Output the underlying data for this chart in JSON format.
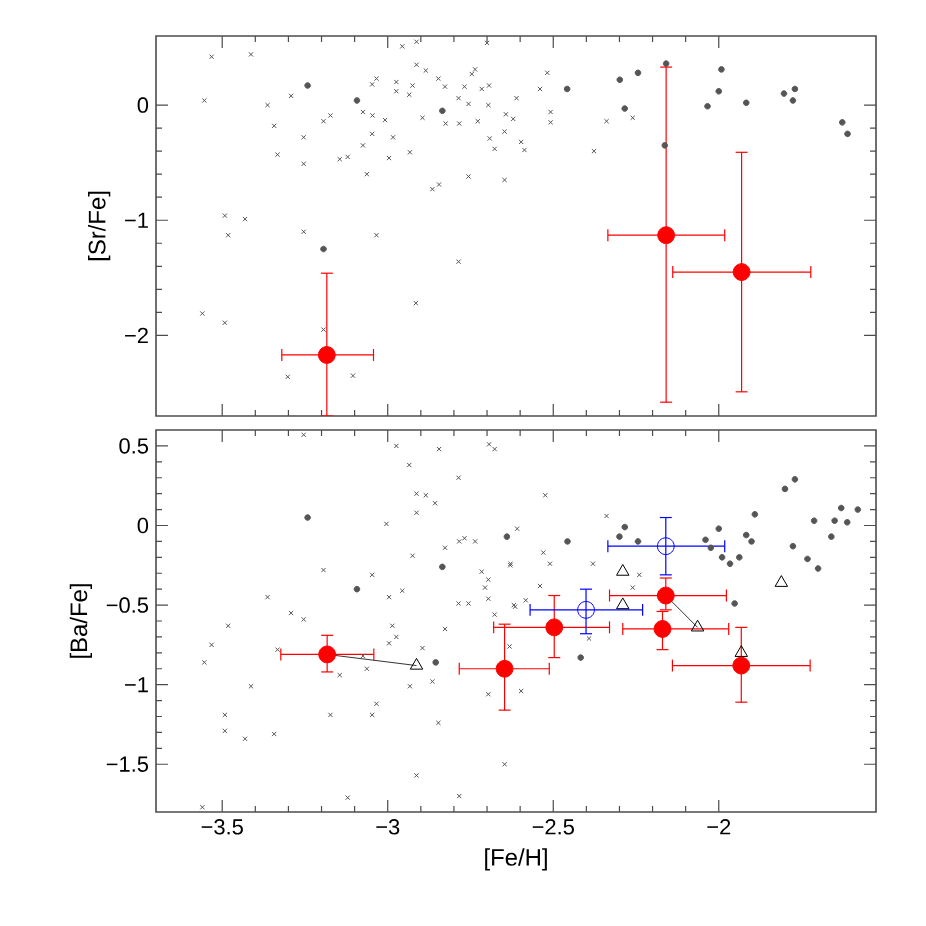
{
  "chart_data": [
    {
      "type": "scatter",
      "ylabel": "[Sr/Fe]",
      "xlim": [
        -3.7,
        -1.525
      ],
      "ylim": [
        -2.7,
        0.6
      ],
      "tick_labels": "y",
      "xticks": [
        {
          "value": -3.5,
          "label": null
        },
        {
          "value": -3,
          "label": null
        },
        {
          "value": -2.5,
          "label": null
        },
        {
          "value": -2,
          "label": null
        }
      ],
      "yticks": [
        {
          "value": -2,
          "label": "−2"
        },
        {
          "value": -1,
          "label": "−1"
        },
        0
      ],
      "series": [
        {
          "type": "scatter",
          "marker": "cross",
          "color": "#555555",
          "x": [
            -3.532,
            -3.413,
            -3.554,
            -3.363,
            -3.343,
            -3.333,
            -3.292,
            -3.254,
            -3.254,
            -3.194,
            -3.173,
            -3.145,
            -3.121,
            -3.075,
            -3.075,
            -3.063,
            -3.047,
            -3.047,
            -3.034,
            -3.046,
            -3.008,
            -2.984,
            -2.996,
            -2.974,
            -2.974,
            -2.956,
            -2.913,
            -2.933,
            -2.925,
            -2.913,
            -2.885,
            -2.895,
            -2.935,
            -2.847,
            -2.827,
            -2.825,
            -2.784,
            -2.786,
            -2.768,
            -2.756,
            -2.746,
            -2.736,
            -2.728,
            -2.716,
            -2.694,
            -2.7,
            -2.696,
            -2.692,
            -2.677,
            -2.647,
            -2.643,
            -2.621,
            -2.611,
            -2.597,
            -2.587,
            -2.54,
            -2.518,
            -2.508,
            -2.508,
            -2.377,
            -2.339,
            -2.26,
            -2.865,
            -2.845,
            -2.756,
            -2.647,
            -3.492,
            -3.431,
            -3.482,
            -3.254,
            -3.034,
            -2.786,
            -2.915,
            -3.56,
            -3.492,
            -3.194,
            -3.302,
            -3.105
          ],
          "values": [
            0.42,
            0.44,
            0.04,
            0.0,
            -0.18,
            -0.43,
            0.08,
            -0.28,
            -0.51,
            -0.14,
            -0.09,
            -0.47,
            -0.45,
            -0.35,
            -0.06,
            -0.6,
            -0.25,
            0.18,
            0.23,
            -0.09,
            -0.13,
            -0.28,
            -0.46,
            0.2,
            0.12,
            0.51,
            0.55,
            -0.41,
            0.17,
            0.35,
            0.3,
            -0.11,
            0.09,
            0.23,
            0.16,
            -0.16,
            -0.16,
            0.06,
            0.16,
            0.01,
            0.27,
            0.31,
            -0.14,
            0.14,
            0.17,
            0.54,
            0.0,
            -0.29,
            -0.38,
            -0.23,
            -0.08,
            -0.12,
            0.06,
            -0.32,
            -0.39,
            0.14,
            0.28,
            -0.06,
            -0.15,
            -0.4,
            -0.14,
            -0.11,
            -0.73,
            -0.69,
            -0.62,
            -0.65,
            -0.96,
            -0.99,
            -1.13,
            -1.1,
            -1.13,
            -1.36,
            -1.72,
            -1.81,
            -1.89,
            -1.95,
            -2.36,
            -2.35
          ]
        },
        {
          "type": "scatter",
          "marker": "circle",
          "color": "#555555",
          "x": [
            -3.242,
            -3.093,
            -3.194,
            -2.835,
            -2.458,
            -2.299,
            -2.244,
            -2.284,
            -2.159,
            -2.163,
            -2.034,
            -2.0,
            -1.992,
            -1.917,
            -1.803,
            -1.776,
            -1.77,
            -1.627,
            -1.611
          ],
          "values": [
            0.17,
            0.04,
            -1.25,
            -0.05,
            0.14,
            0.22,
            0.28,
            -0.03,
            0.36,
            -0.35,
            -0.01,
            0.12,
            0.31,
            0.02,
            0.1,
            0.04,
            0.14,
            -0.15,
            -0.25
          ]
        },
        {
          "type": "scatter",
          "marker": "circle",
          "color": "#ff0000",
          "x": [
            -3.184,
            -2.159,
            -1.931
          ],
          "values": [
            -2.17,
            -1.13,
            -1.45
          ],
          "errors": [
            [
              -2.7,
              -1.46
            ],
            [
              -2.58,
              0.33
            ],
            [
              -2.49,
              -0.41
            ]
          ],
          "xerrors": [
            [
              -3.32,
              -3.043
            ],
            [
              -2.335,
              -1.982
            ],
            [
              -2.139,
              -1.722
            ]
          ]
        }
      ]
    },
    {
      "type": "scatter",
      "ylabel": "[Ba/Fe]",
      "xlabel": "[Fe/H]",
      "xlim": [
        -3.7,
        -1.525
      ],
      "ylim": [
        -1.8,
        0.6
      ],
      "xticks": [
        {
          "value": -3.5,
          "label": "−3.5"
        },
        {
          "value": -3,
          "label": "−3"
        },
        {
          "value": -2.5,
          "label": "−2.5"
        },
        {
          "value": -2,
          "label": "−2"
        }
      ],
      "yticks": [
        {
          "value": -1.5,
          "label": "−1.5"
        },
        {
          "value": -1,
          "label": "−1"
        },
        {
          "value": -0.5,
          "label": "−0.5"
        },
        0,
        0.5
      ],
      "series": [
        {
          "type": "scatter",
          "marker": "cross",
          "color": "#555555",
          "x": [
            -3.56,
            -3.554,
            -3.532,
            -3.482,
            -3.492,
            -3.492,
            -3.431,
            -3.413,
            -3.343,
            -3.363,
            -3.333,
            -3.292,
            -3.254,
            -3.194,
            -3.173,
            -3.145,
            -3.121,
            -3.075,
            -3.063,
            -3.047,
            -3.047,
            -3.034,
            -3.004,
            -2.996,
            -2.986,
            -2.996,
            -2.974,
            -2.956,
            -2.935,
            -2.933,
            -2.925,
            -2.913,
            -2.913,
            -2.913,
            -2.895,
            -2.885,
            -2.865,
            -2.857,
            -2.847,
            -2.827,
            -2.827,
            -2.786,
            -2.784,
            -2.786,
            -2.784,
            -2.768,
            -2.756,
            -2.736,
            -2.716,
            -2.706,
            -2.696,
            -2.696,
            -2.677,
            -2.696,
            -2.647,
            -2.629,
            -2.619,
            -2.609,
            -2.524,
            -2.53,
            -2.63,
            -2.51,
            -2.615,
            -2.54,
            -2.583,
            -2.632,
            -2.597,
            -2.339,
            -2.38,
            -2.26,
            -2.24,
            -2.392,
            -3.254,
            -2.974,
            -2.845,
            -2.694,
            -2.677
          ],
          "values": [
            -1.77,
            -0.86,
            -0.75,
            -0.63,
            -1.19,
            -1.29,
            -1.34,
            -1.01,
            -1.31,
            -0.45,
            -0.78,
            -0.55,
            -0.59,
            -0.28,
            -1.19,
            -0.94,
            -1.71,
            -0.82,
            -0.9,
            -0.31,
            -1.19,
            -1.12,
            0.01,
            -0.45,
            -0.63,
            -0.74,
            -0.7,
            -0.41,
            0.38,
            -1.01,
            -0.19,
            0.2,
            0.08,
            -1.57,
            -0.77,
            0.19,
            -0.98,
            0.14,
            -1.24,
            -0.14,
            -0.65,
            0.3,
            -0.1,
            -0.49,
            -1.7,
            -0.08,
            -0.49,
            -0.1,
            -0.29,
            -0.39,
            -0.34,
            -0.46,
            -0.56,
            -1.06,
            -1.5,
            -0.24,
            -0.5,
            -0.02,
            0.19,
            -0.17,
            -0.25,
            -0.24,
            -0.51,
            -0.38,
            -0.47,
            -0.76,
            -1.04,
            0.06,
            -0.24,
            -0.39,
            -0.31,
            -0.71,
            0.57,
            0.5,
            0.48,
            0.51,
            0.48
          ]
        },
        {
          "type": "scatter",
          "marker": "circle",
          "color": "#555555",
          "x": [
            -3.242,
            -3.093,
            -2.835,
            -2.855,
            -2.64,
            -2.457,
            -2.417,
            -2.3,
            -2.284,
            -2.244,
            -2.04,
            -2.024,
            -2.0,
            -1.99,
            -1.966,
            -1.938,
            -1.917,
            -1.901,
            -1.891,
            -1.952,
            -1.8,
            -1.77,
            -1.776,
            -1.732,
            -1.7,
            -1.712,
            -1.66,
            -1.65,
            -1.63,
            -1.612,
            -1.58
          ],
          "values": [
            0.05,
            -0.4,
            -0.26,
            -0.86,
            -0.07,
            -0.1,
            -0.83,
            -0.07,
            -0.01,
            -0.1,
            -0.09,
            -0.14,
            -0.02,
            -0.2,
            -0.24,
            -0.2,
            -0.06,
            -0.1,
            0.07,
            -0.49,
            0.23,
            0.29,
            -0.13,
            -0.21,
            -0.27,
            0.03,
            -0.07,
            0.03,
            0.11,
            0.02,
            0.1
          ]
        },
        {
          "type": "line",
          "color": "#000000",
          "x": [
            -3.183,
            -2.913
          ],
          "values": [
            -0.81,
            -0.88
          ]
        },
        {
          "type": "line",
          "color": "#000000",
          "x": [
            -2.16,
            -2.064
          ],
          "values": [
            -0.44,
            -0.64
          ]
        },
        {
          "type": "scatter",
          "marker": "triangle",
          "color": "#000000",
          "x": [
            -2.913,
            -2.29,
            -2.29,
            -2.064,
            -1.932,
            -1.811
          ],
          "values": [
            -0.88,
            -0.29,
            -0.5,
            -0.64,
            -0.8,
            -0.36
          ]
        },
        {
          "type": "scatter",
          "marker": "circle",
          "color": "#ff0000",
          "x": [
            -3.183,
            -2.647,
            -2.497,
            -2.17,
            -2.16,
            -1.932
          ],
          "values": [
            -0.81,
            -0.9,
            -0.64,
            -0.65,
            -0.44,
            -0.88
          ],
          "errors": [
            [
              -0.92,
              -0.69
            ],
            [
              -1.16,
              -0.62
            ],
            [
              -0.83,
              -0.44
            ],
            [
              -0.78,
              -0.54
            ],
            [
              -0.53,
              -0.33
            ],
            [
              -1.11,
              -0.64
            ]
          ],
          "xerrors": [
            [
              -3.323,
              -3.042
            ],
            [
              -2.784,
              -2.512
            ],
            [
              -2.68,
              -2.33
            ],
            [
              -2.29,
              -1.97
            ],
            [
              -2.33,
              -1.977
            ],
            [
              -2.14,
              -1.724
            ]
          ]
        },
        {
          "type": "scatter",
          "marker": "circle",
          "color": "#0000ff",
          "x": [
            -2.401,
            -2.16
          ],
          "values": [
            -0.53,
            -0.13
          ],
          "errors": [
            [
              -0.68,
              -0.4
            ],
            [
              -0.31,
              0.05
            ]
          ],
          "xerrors": [
            [
              -2.57,
              -2.23
            ],
            [
              -2.335,
              -1.982
            ]
          ]
        }
      ]
    }
  ]
}
